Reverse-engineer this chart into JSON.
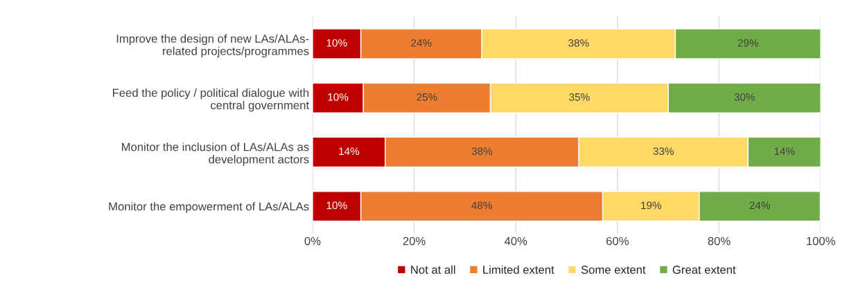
{
  "chart_data": {
    "type": "bar",
    "orientation": "horizontal",
    "stacked": true,
    "categories": [
      "Improve the design of new LAs/ALAs-\nrelated projects/programmes",
      "Feed the policy / political dialogue with\ncentral government",
      "Monitor the inclusion of LAs/ALAs as\ndevelopment actors",
      "Monitor the empowerment of LAs/ALAs"
    ],
    "series": [
      {
        "name": "Not at all",
        "color": "#c00000",
        "values": [
          9.5,
          10,
          14.3,
          9.5
        ],
        "value_labels": [
          "10%",
          "10%",
          "14%",
          "10%"
        ]
      },
      {
        "name": "Limited extent",
        "color": "#ed7d31",
        "values": [
          23.8,
          25,
          38.1,
          47.6
        ],
        "value_labels": [
          "24%",
          "25%",
          "38%",
          "48%"
        ]
      },
      {
        "name": "Some extent",
        "color": "#ffd966",
        "values": [
          38.1,
          35,
          33.3,
          19.0
        ],
        "value_labels": [
          "38%",
          "35%",
          "33%",
          "19%"
        ]
      },
      {
        "name": "Great extent",
        "color": "#70ad47",
        "values": [
          28.6,
          30,
          14.3,
          23.8
        ],
        "value_labels": [
          "29%",
          "30%",
          "14%",
          "24%"
        ]
      }
    ],
    "xlim": [
      0,
      100
    ],
    "xticks": [
      {
        "value": 0,
        "label": "0%"
      },
      {
        "value": 20,
        "label": "20%"
      },
      {
        "value": 40,
        "label": "40%"
      },
      {
        "value": 60,
        "label": "60%"
      },
      {
        "value": 80,
        "label": "80%"
      },
      {
        "value": 100,
        "label": "100%"
      }
    ],
    "grid": "x",
    "legend": "bottom"
  }
}
